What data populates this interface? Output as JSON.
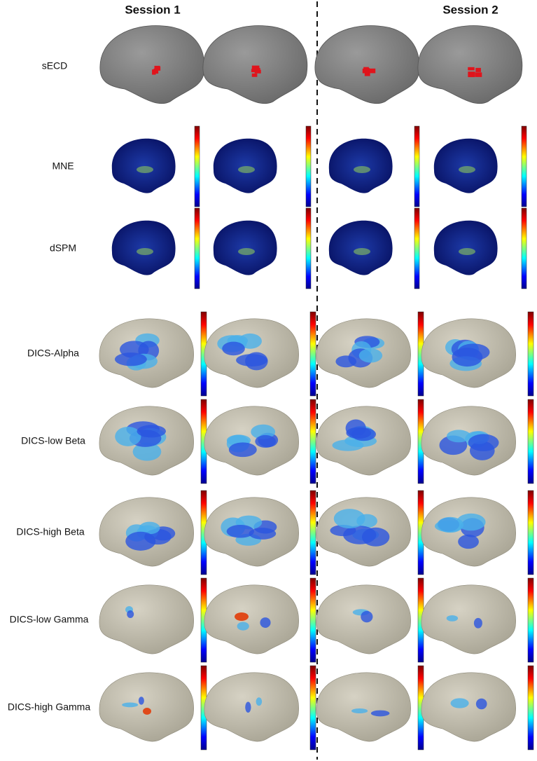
{
  "header": {
    "session_1": "Session 1",
    "session_2": "Session 2"
  },
  "rows": [
    {
      "label": "sECD"
    },
    {
      "label": "MNE"
    },
    {
      "label": "dSPM"
    },
    {
      "label": "DICS-Alpha"
    },
    {
      "label": "DICS-low Beta"
    },
    {
      "label": "DICS-high Beta"
    },
    {
      "label": "DICS-low Gamma"
    },
    {
      "label": "DICS-high Gamma"
    }
  ]
}
